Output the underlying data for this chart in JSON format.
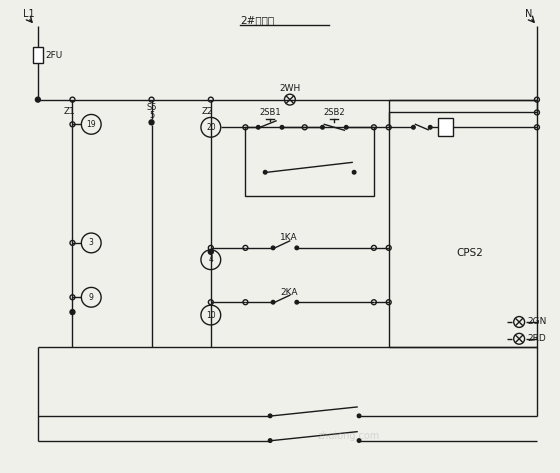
{
  "title": "2#泵控制",
  "bg_color": "#f0f0eb",
  "line_color": "#1a1a1a",
  "text_color": "#1a1a1a",
  "fig_width": 5.6,
  "fig_height": 4.73,
  "label_L1": "L1",
  "label_N": "N",
  "label_2FU": "2FU",
  "label_2WH": "2WH",
  "label_Z1": "Z1",
  "label_Z2": "Z2",
  "label_S5": "S5",
  "label_5": "5",
  "label_19": "19",
  "label_3": "3",
  "label_9": "9",
  "label_20": "20",
  "label_4": "4",
  "label_10": "10",
  "label_2SB1": "2SB1",
  "label_2SB2": "2SB2",
  "label_1KA": "1KA",
  "label_2KA": "2KA",
  "label_CPS2": "CPS2",
  "label_2GN": "2GN",
  "label_2RD": "2RD"
}
